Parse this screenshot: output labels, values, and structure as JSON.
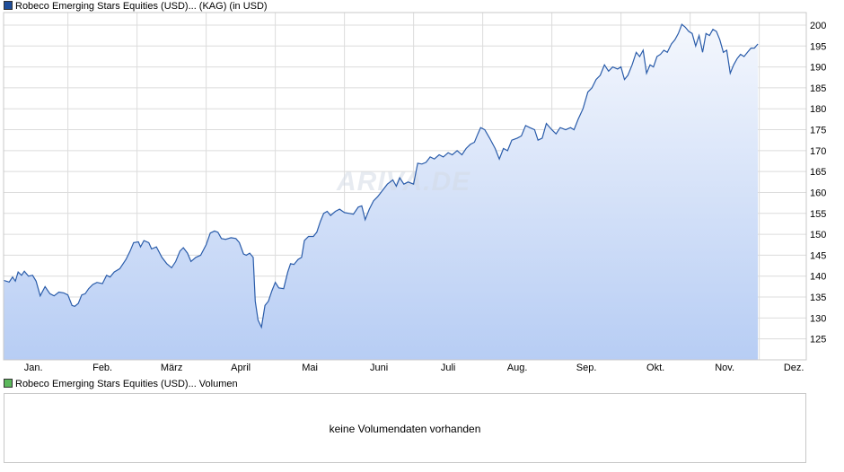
{
  "legend": {
    "price_label": "Robeco Emerging Stars Equities (USD)... (KAG) (in USD)",
    "volume_label": "Robeco Emerging Stars Equities (USD)... Volumen"
  },
  "volume": {
    "message": "keine Volumendaten vorhanden"
  },
  "watermark": "ARIVA.DE",
  "colors": {
    "line": "#2a5caa",
    "area_top": "#f4f7fd",
    "area_bottom": "#b7cdf4",
    "grid": "#dcdcdc",
    "price_swatch": "#1f4e9a",
    "volume_swatch": "#5cb85c"
  },
  "chart_data": {
    "type": "area",
    "ylim": [
      120,
      203
    ],
    "yticks": [
      125,
      130,
      135,
      140,
      145,
      150,
      155,
      160,
      165,
      170,
      175,
      180,
      185,
      190,
      195,
      200
    ],
    "month_ticks": [
      {
        "label": "Jan.",
        "x": 0.5
      },
      {
        "label": "Feb.",
        "x": 1.5
      },
      {
        "label": "März",
        "x": 2.5
      },
      {
        "label": "April",
        "x": 3.5
      },
      {
        "label": "Mai",
        "x": 4.5
      },
      {
        "label": "Juni",
        "x": 5.5
      },
      {
        "label": "Juli",
        "x": 6.5
      },
      {
        "label": "Aug.",
        "x": 7.5
      },
      {
        "label": "Sep.",
        "x": 8.5
      },
      {
        "label": "Okt.",
        "x": 9.5
      },
      {
        "label": "Nov.",
        "x": 10.5
      },
      {
        "label": "Dez.",
        "x": 11.5
      }
    ],
    "month_boundaries": [
      1,
      2,
      3,
      4,
      5,
      6,
      7,
      8,
      9,
      10,
      11
    ],
    "xlim": [
      0.07,
      11.68
    ],
    "series": [
      {
        "points": [
          [
            0.07,
            139.0
          ],
          [
            0.15,
            138.6
          ],
          [
            0.2,
            139.8
          ],
          [
            0.24,
            138.8
          ],
          [
            0.28,
            141.0
          ],
          [
            0.33,
            140.2
          ],
          [
            0.37,
            141.2
          ],
          [
            0.43,
            140.0
          ],
          [
            0.49,
            140.2
          ],
          [
            0.54,
            138.8
          ],
          [
            0.6,
            135.3
          ],
          [
            0.67,
            137.5
          ],
          [
            0.74,
            135.8
          ],
          [
            0.8,
            135.3
          ],
          [
            0.87,
            136.2
          ],
          [
            0.94,
            136.0
          ],
          [
            1.0,
            135.5
          ],
          [
            1.06,
            133.0
          ],
          [
            1.1,
            132.8
          ],
          [
            1.15,
            133.5
          ],
          [
            1.2,
            135.5
          ],
          [
            1.25,
            135.8
          ],
          [
            1.3,
            137.0
          ],
          [
            1.36,
            138.0
          ],
          [
            1.42,
            138.5
          ],
          [
            1.5,
            138.2
          ],
          [
            1.56,
            140.2
          ],
          [
            1.61,
            139.8
          ],
          [
            1.67,
            141.0
          ],
          [
            1.75,
            141.8
          ],
          [
            1.84,
            144.0
          ],
          [
            1.9,
            146.0
          ],
          [
            1.95,
            148.0
          ],
          [
            2.02,
            148.2
          ],
          [
            2.05,
            147.0
          ],
          [
            2.1,
            148.5
          ],
          [
            2.17,
            148.0
          ],
          [
            2.21,
            146.5
          ],
          [
            2.28,
            147.0
          ],
          [
            2.36,
            144.5
          ],
          [
            2.43,
            143.0
          ],
          [
            2.5,
            142.0
          ],
          [
            2.56,
            143.5
          ],
          [
            2.62,
            146.0
          ],
          [
            2.67,
            146.8
          ],
          [
            2.73,
            145.5
          ],
          [
            2.78,
            143.5
          ],
          [
            2.85,
            144.5
          ],
          [
            2.92,
            145.0
          ],
          [
            3.0,
            147.5
          ],
          [
            3.06,
            150.3
          ],
          [
            3.12,
            150.8
          ],
          [
            3.17,
            150.5
          ],
          [
            3.22,
            149.0
          ],
          [
            3.28,
            148.8
          ],
          [
            3.36,
            149.2
          ],
          [
            3.43,
            149.0
          ],
          [
            3.48,
            148.0
          ],
          [
            3.54,
            145.3
          ],
          [
            3.58,
            145.0
          ],
          [
            3.63,
            145.5
          ],
          [
            3.68,
            144.5
          ],
          [
            3.71,
            134.0
          ],
          [
            3.75,
            129.5
          ],
          [
            3.8,
            127.8
          ],
          [
            3.85,
            133.0
          ],
          [
            3.9,
            134.0
          ],
          [
            3.95,
            136.5
          ],
          [
            4.0,
            138.5
          ],
          [
            4.05,
            137.2
          ],
          [
            4.12,
            137.0
          ],
          [
            4.18,
            141.0
          ],
          [
            4.22,
            143.0
          ],
          [
            4.27,
            142.8
          ],
          [
            4.33,
            144.0
          ],
          [
            4.38,
            144.5
          ],
          [
            4.42,
            148.5
          ],
          [
            4.48,
            149.5
          ],
          [
            4.55,
            149.5
          ],
          [
            4.6,
            150.5
          ],
          [
            4.65,
            153.0
          ],
          [
            4.7,
            155.0
          ],
          [
            4.75,
            155.5
          ],
          [
            4.8,
            154.5
          ],
          [
            4.87,
            155.5
          ],
          [
            4.93,
            156.0
          ],
          [
            5.0,
            155.2
          ],
          [
            5.07,
            155.0
          ],
          [
            5.13,
            154.8
          ],
          [
            5.2,
            156.5
          ],
          [
            5.25,
            156.8
          ],
          [
            5.3,
            153.5
          ],
          [
            5.36,
            156.0
          ],
          [
            5.42,
            158.0
          ],
          [
            5.48,
            159.0
          ],
          [
            5.55,
            160.5
          ],
          [
            5.62,
            162.0
          ],
          [
            5.7,
            163.0
          ],
          [
            5.75,
            161.5
          ],
          [
            5.8,
            163.5
          ],
          [
            5.86,
            162.0
          ],
          [
            5.92,
            162.5
          ],
          [
            6.0,
            162.0
          ],
          [
            6.06,
            167.0
          ],
          [
            6.12,
            166.8
          ],
          [
            6.18,
            167.2
          ],
          [
            6.24,
            168.5
          ],
          [
            6.3,
            168.0
          ],
          [
            6.37,
            169.0
          ],
          [
            6.43,
            168.5
          ],
          [
            6.5,
            169.5
          ],
          [
            6.56,
            169.0
          ],
          [
            6.63,
            170.0
          ],
          [
            6.7,
            169.0
          ],
          [
            6.76,
            170.5
          ],
          [
            6.82,
            171.5
          ],
          [
            6.88,
            172.0
          ],
          [
            6.93,
            174.0
          ],
          [
            6.97,
            175.5
          ],
          [
            7.03,
            175.0
          ],
          [
            7.1,
            173.0
          ],
          [
            7.18,
            170.5
          ],
          [
            7.24,
            168.0
          ],
          [
            7.3,
            170.5
          ],
          [
            7.36,
            170.0
          ],
          [
            7.42,
            172.5
          ],
          [
            7.5,
            173.0
          ],
          [
            7.56,
            173.5
          ],
          [
            7.62,
            176.0
          ],
          [
            7.68,
            175.5
          ],
          [
            7.75,
            175.0
          ],
          [
            7.8,
            172.5
          ],
          [
            7.86,
            173.0
          ],
          [
            7.92,
            176.5
          ],
          [
            8.0,
            175.0
          ],
          [
            8.06,
            174.0
          ],
          [
            8.12,
            175.5
          ],
          [
            8.2,
            175.0
          ],
          [
            8.27,
            175.5
          ],
          [
            8.32,
            175.0
          ],
          [
            8.38,
            177.5
          ],
          [
            8.45,
            180.0
          ],
          [
            8.52,
            184.0
          ],
          [
            8.58,
            185.0
          ],
          [
            8.64,
            187.0
          ],
          [
            8.7,
            188.0
          ],
          [
            8.76,
            190.5
          ],
          [
            8.82,
            189.0
          ],
          [
            8.88,
            190.0
          ],
          [
            8.95,
            189.5
          ],
          [
            9.0,
            190.0
          ],
          [
            9.05,
            187.0
          ],
          [
            9.1,
            188.0
          ],
          [
            9.16,
            190.5
          ],
          [
            9.22,
            193.5
          ],
          [
            9.27,
            192.5
          ],
          [
            9.32,
            194.0
          ],
          [
            9.37,
            188.5
          ],
          [
            9.42,
            190.5
          ],
          [
            9.47,
            190.0
          ],
          [
            9.52,
            192.5
          ],
          [
            9.57,
            193.0
          ],
          [
            9.62,
            194.0
          ],
          [
            9.67,
            193.5
          ],
          [
            9.73,
            195.5
          ],
          [
            9.78,
            196.5
          ],
          [
            9.83,
            198.0
          ],
          [
            9.88,
            200.2
          ],
          [
            9.93,
            199.5
          ],
          [
            9.98,
            198.5
          ],
          [
            10.03,
            198.0
          ],
          [
            10.08,
            195.0
          ],
          [
            10.13,
            197.5
          ],
          [
            10.18,
            193.5
          ],
          [
            10.23,
            198.0
          ],
          [
            10.28,
            197.5
          ],
          [
            10.33,
            199.0
          ],
          [
            10.38,
            198.5
          ],
          [
            10.43,
            196.5
          ],
          [
            10.48,
            193.5
          ],
          [
            10.53,
            194.0
          ],
          [
            10.58,
            188.5
          ],
          [
            10.63,
            190.5
          ],
          [
            10.68,
            192.0
          ],
          [
            10.73,
            193.0
          ],
          [
            10.78,
            192.5
          ],
          [
            10.83,
            193.5
          ],
          [
            10.88,
            194.5
          ],
          [
            10.93,
            194.5
          ],
          [
            10.98,
            195.5
          ]
        ]
      }
    ]
  }
}
